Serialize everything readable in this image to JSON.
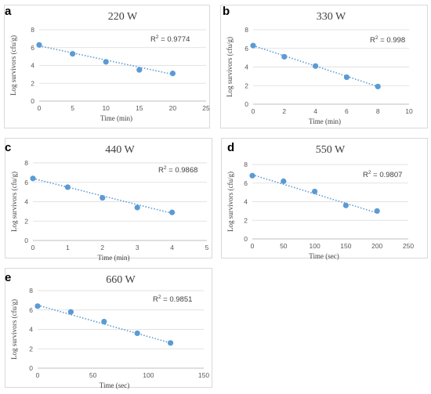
{
  "colors": {
    "series": "#5b9bd5",
    "grid": "#d9d9d9"
  },
  "chart_data": [
    {
      "panel_label": "a",
      "type": "scatter",
      "title": "220 W",
      "xlabel": "Time (min)",
      "ylabel": "Log survivors (cfu/g)",
      "xlim": [
        0,
        25
      ],
      "ylim": [
        0,
        8
      ],
      "xticks": [
        0,
        5,
        10,
        15,
        20,
        25
      ],
      "yticks": [
        0,
        2,
        4,
        6,
        8
      ],
      "x": [
        0,
        5,
        10,
        15,
        20
      ],
      "y": [
        6.3,
        5.3,
        4.4,
        3.5,
        3.1
      ],
      "trendline": "linear",
      "trend_y": [
        6.2,
        3.0
      ],
      "r2_label": "R",
      "r2_sup": "2",
      "r2_value": " = 0.9774"
    },
    {
      "panel_label": "b",
      "type": "scatter",
      "title": "330 W",
      "xlabel": "Time (min)",
      "ylabel": "Log survivors (cfu/g)",
      "xlim": [
        0,
        10
      ],
      "ylim": [
        0,
        8
      ],
      "xticks": [
        0,
        2,
        4,
        6,
        8,
        10
      ],
      "yticks": [
        0,
        2,
        4,
        6,
        8
      ],
      "x": [
        0,
        2,
        4,
        6,
        8
      ],
      "y": [
        6.3,
        5.1,
        4.1,
        2.9,
        1.9
      ],
      "trendline": "linear",
      "trend_y": [
        6.3,
        1.9
      ],
      "r2_label": "R",
      "r2_sup": "2",
      "r2_value": " = 0.998"
    },
    {
      "panel_label": "c",
      "type": "scatter",
      "title": "440 W",
      "xlabel": "Time (min)",
      "ylabel": "Log survivors (cfu/g)",
      "xlim": [
        0,
        5
      ],
      "ylim": [
        0,
        8
      ],
      "xticks": [
        0,
        1,
        2,
        3,
        4,
        5
      ],
      "yticks": [
        0,
        2,
        4,
        6,
        8
      ],
      "x": [
        0,
        1,
        2,
        3,
        4
      ],
      "y": [
        6.4,
        5.5,
        4.4,
        3.4,
        2.9
      ],
      "trendline": "linear",
      "trend_y": [
        6.4,
        2.8
      ],
      "r2_label": "R",
      "r2_sup": "2",
      "r2_value": " = 0.9868"
    },
    {
      "panel_label": "d",
      "type": "scatter",
      "title": "550 W",
      "xlabel": "Time (sec)",
      "ylabel": "Log survivors (cfu/g)",
      "xlim": [
        0,
        250
      ],
      "ylim": [
        0,
        8
      ],
      "xticks": [
        0,
        50,
        100,
        150,
        200,
        250
      ],
      "yticks": [
        0,
        2,
        4,
        6,
        8
      ],
      "x": [
        0,
        50,
        100,
        150,
        200
      ],
      "y": [
        6.8,
        6.2,
        5.1,
        3.6,
        3.0
      ],
      "trendline": "linear",
      "trend_y": [
        6.9,
        2.8
      ],
      "r2_label": "R",
      "r2_sup": "2",
      "r2_value": " = 0.9807"
    },
    {
      "panel_label": "e",
      "type": "scatter",
      "title": "660 W",
      "xlabel": "Time (sec)",
      "ylabel": "Log survivors (cfu/g)",
      "xlim": [
        0,
        150
      ],
      "ylim": [
        0,
        8
      ],
      "xticks": [
        0,
        50,
        100,
        150
      ],
      "yticks": [
        0,
        2,
        4,
        6,
        8
      ],
      "x": [
        0,
        30,
        60,
        90,
        120
      ],
      "y": [
        6.4,
        5.8,
        4.8,
        3.6,
        2.6
      ],
      "trendline": "linear",
      "trend_y": [
        6.5,
        2.6
      ],
      "r2_label": "R",
      "r2_sup": "2",
      "r2_value": " = 0.9851"
    }
  ]
}
